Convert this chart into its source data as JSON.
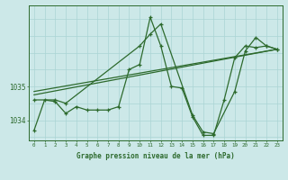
{
  "title": "Graphe pression niveau de la mer (hPa)",
  "bg_color": "#cce8e8",
  "line_color": "#2d6a2d",
  "grid_color": "#aad4d4",
  "x_ticks": [
    0,
    1,
    2,
    3,
    4,
    5,
    6,
    7,
    8,
    9,
    10,
    11,
    12,
    13,
    14,
    15,
    16,
    17,
    18,
    19,
    20,
    21,
    22,
    23
  ],
  "y_ticks": [
    1034,
    1035
  ],
  "ylim": [
    1033.4,
    1037.4
  ],
  "xlim": [
    -0.5,
    23.5
  ],
  "series_main": {
    "x": [
      0,
      1,
      2,
      3,
      4,
      5,
      6,
      7,
      8,
      9,
      10,
      11,
      12,
      13,
      14,
      15,
      16,
      17,
      18,
      19,
      20,
      21,
      22,
      23
    ],
    "y": [
      1033.7,
      1034.6,
      1034.55,
      1034.2,
      1034.4,
      1034.3,
      1034.3,
      1034.3,
      1034.4,
      1035.5,
      1035.65,
      1037.05,
      1036.2,
      1035.0,
      1034.95,
      1034.1,
      1033.55,
      1033.55,
      1034.6,
      1035.85,
      1036.2,
      1036.15,
      1036.2,
      1036.1
    ]
  },
  "series_sparse": {
    "x": [
      0,
      2,
      3,
      10,
      11,
      12,
      15,
      16,
      17,
      19,
      20,
      21,
      22,
      23
    ],
    "y": [
      1034.6,
      1034.6,
      1034.5,
      1036.2,
      1036.55,
      1036.85,
      1034.15,
      1033.65,
      1033.6,
      1034.85,
      1036.05,
      1036.45,
      1036.2,
      1036.1
    ]
  },
  "series_line1": {
    "x": [
      0,
      23
    ],
    "y": [
      1034.75,
      1036.1
    ]
  },
  "series_line2": {
    "x": [
      0,
      23
    ],
    "y": [
      1034.85,
      1036.1
    ]
  }
}
